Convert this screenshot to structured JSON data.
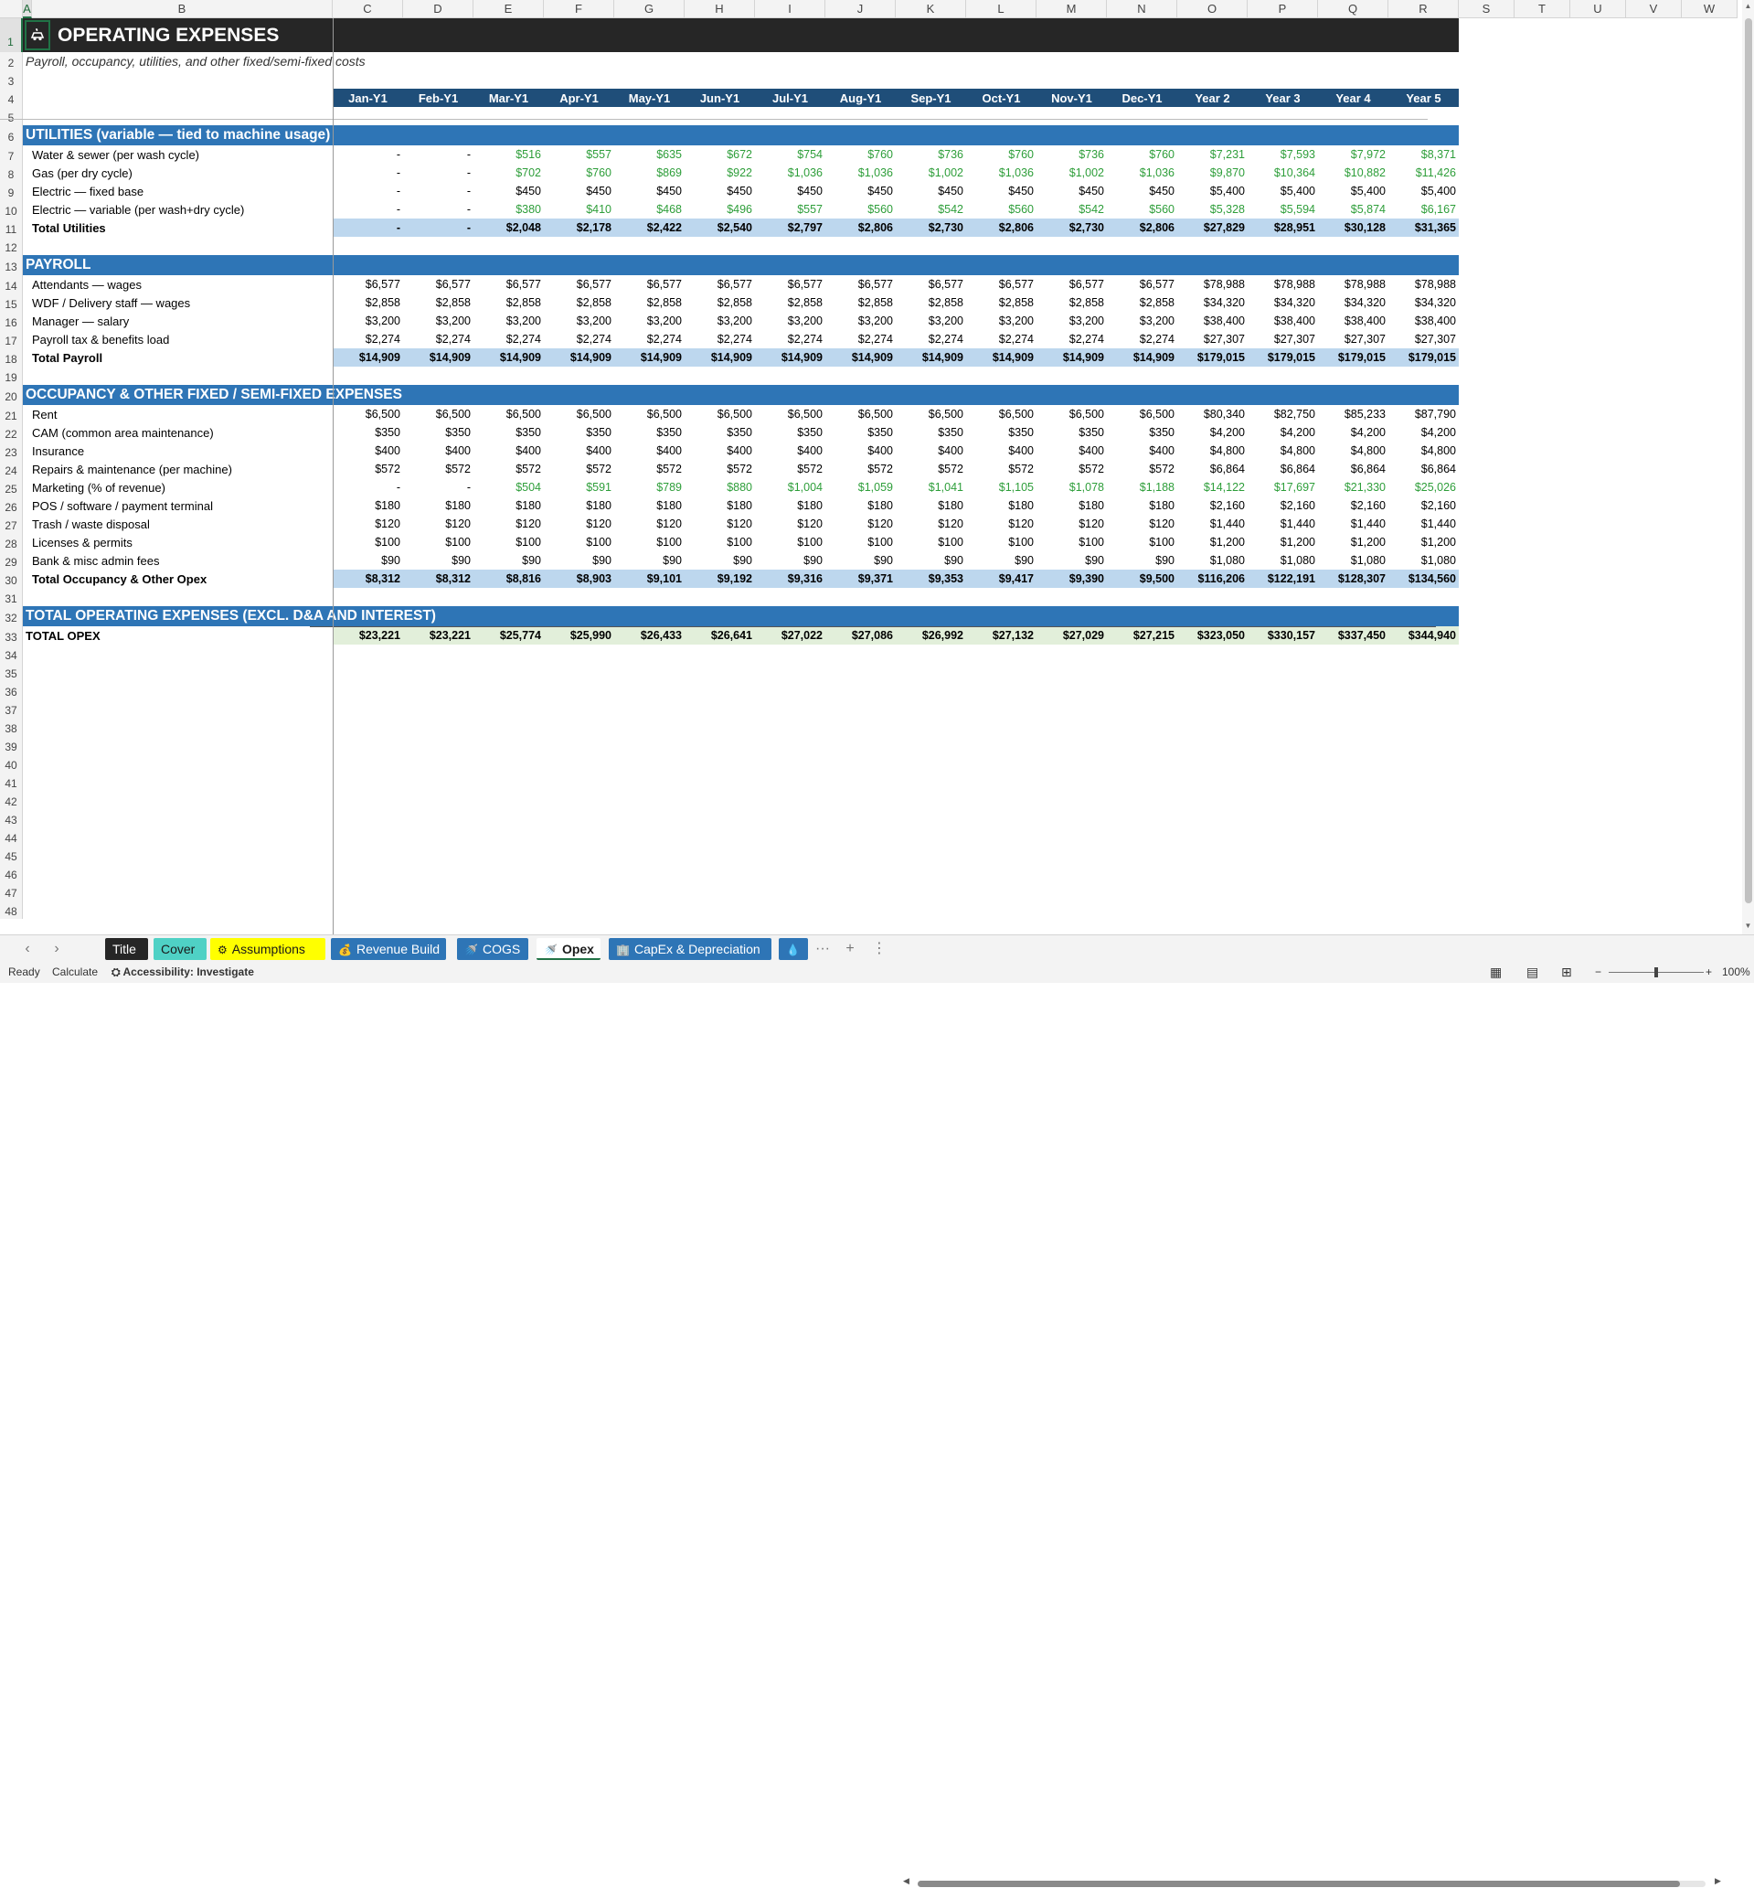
{
  "columns": [
    "A",
    "B",
    "C",
    "D",
    "E",
    "F",
    "G",
    "H",
    "I",
    "J",
    "K",
    "L",
    "M",
    "N",
    "O",
    "P",
    "Q",
    "R",
    "S",
    "T",
    "U",
    "V",
    "W"
  ],
  "selected_column": "A",
  "selected_row": "1",
  "title_icon": "car-wash-icon",
  "title": "OPERATING EXPENSES",
  "subtitle": "Payroll, occupancy, utilities, and other fixed/semi-fixed costs",
  "period_headers": [
    "Jan-Y1",
    "Feb-Y1",
    "Mar-Y1",
    "Apr-Y1",
    "May-Y1",
    "Jun-Y1",
    "Jul-Y1",
    "Aug-Y1",
    "Sep-Y1",
    "Oct-Y1",
    "Nov-Y1",
    "Dec-Y1",
    "Year 2",
    "Year 3",
    "Year 4",
    "Year 5"
  ],
  "sections": {
    "utilities": {
      "title": "UTILITIES (variable — tied to machine usage)",
      "rows": [
        {
          "label": "Water & sewer (per wash cycle)",
          "values": [
            "-",
            "-",
            "$516",
            "$557",
            "$635",
            "$672",
            "$754",
            "$760",
            "$736",
            "$760",
            "$736",
            "$760",
            "$7,231",
            "$7,593",
            "$7,972",
            "$8,371"
          ],
          "style": "green"
        },
        {
          "label": "Gas (per dry cycle)",
          "values": [
            "-",
            "-",
            "$702",
            "$760",
            "$869",
            "$922",
            "$1,036",
            "$1,036",
            "$1,002",
            "$1,036",
            "$1,002",
            "$1,036",
            "$9,870",
            "$10,364",
            "$10,882",
            "$11,426"
          ],
          "style": "green"
        },
        {
          "label": "Electric — fixed base",
          "values": [
            "-",
            "-",
            "$450",
            "$450",
            "$450",
            "$450",
            "$450",
            "$450",
            "$450",
            "$450",
            "$450",
            "$450",
            "$5,400",
            "$5,400",
            "$5,400",
            "$5,400"
          ],
          "style": "black"
        },
        {
          "label": "Electric — variable (per wash+dry cycle)",
          "values": [
            "-",
            "-",
            "$380",
            "$410",
            "$468",
            "$496",
            "$557",
            "$560",
            "$542",
            "$560",
            "$542",
            "$560",
            "$5,328",
            "$5,594",
            "$5,874",
            "$6,167"
          ],
          "style": "green"
        }
      ],
      "total": {
        "label": "Total Utilities",
        "values": [
          "-",
          "-",
          "$2,048",
          "$2,178",
          "$2,422",
          "$2,540",
          "$2,797",
          "$2,806",
          "$2,730",
          "$2,806",
          "$2,730",
          "$2,806",
          "$27,829",
          "$28,951",
          "$30,128",
          "$31,365"
        ]
      }
    },
    "payroll": {
      "title": "PAYROLL",
      "rows": [
        {
          "label": "Attendants — wages",
          "values": [
            "$6,577",
            "$6,577",
            "$6,577",
            "$6,577",
            "$6,577",
            "$6,577",
            "$6,577",
            "$6,577",
            "$6,577",
            "$6,577",
            "$6,577",
            "$6,577",
            "$78,988",
            "$78,988",
            "$78,988",
            "$78,988"
          ],
          "style": "black"
        },
        {
          "label": "WDF / Delivery staff — wages",
          "values": [
            "$2,858",
            "$2,858",
            "$2,858",
            "$2,858",
            "$2,858",
            "$2,858",
            "$2,858",
            "$2,858",
            "$2,858",
            "$2,858",
            "$2,858",
            "$2,858",
            "$34,320",
            "$34,320",
            "$34,320",
            "$34,320"
          ],
          "style": "black"
        },
        {
          "label": "Manager — salary",
          "values": [
            "$3,200",
            "$3,200",
            "$3,200",
            "$3,200",
            "$3,200",
            "$3,200",
            "$3,200",
            "$3,200",
            "$3,200",
            "$3,200",
            "$3,200",
            "$3,200",
            "$38,400",
            "$38,400",
            "$38,400",
            "$38,400"
          ],
          "style": "black"
        },
        {
          "label": "Payroll tax & benefits load",
          "values": [
            "$2,274",
            "$2,274",
            "$2,274",
            "$2,274",
            "$2,274",
            "$2,274",
            "$2,274",
            "$2,274",
            "$2,274",
            "$2,274",
            "$2,274",
            "$2,274",
            "$27,307",
            "$27,307",
            "$27,307",
            "$27,307"
          ],
          "style": "black"
        }
      ],
      "total": {
        "label": "Total Payroll",
        "values": [
          "$14,909",
          "$14,909",
          "$14,909",
          "$14,909",
          "$14,909",
          "$14,909",
          "$14,909",
          "$14,909",
          "$14,909",
          "$14,909",
          "$14,909",
          "$14,909",
          "$179,015",
          "$179,015",
          "$179,015",
          "$179,015"
        ]
      }
    },
    "occupancy": {
      "title": "OCCUPANCY & OTHER FIXED / SEMI-FIXED EXPENSES",
      "rows": [
        {
          "label": "Rent",
          "values": [
            "$6,500",
            "$6,500",
            "$6,500",
            "$6,500",
            "$6,500",
            "$6,500",
            "$6,500",
            "$6,500",
            "$6,500",
            "$6,500",
            "$6,500",
            "$6,500",
            "$80,340",
            "$82,750",
            "$85,233",
            "$87,790"
          ],
          "style": "black"
        },
        {
          "label": "CAM (common area maintenance)",
          "values": [
            "$350",
            "$350",
            "$350",
            "$350",
            "$350",
            "$350",
            "$350",
            "$350",
            "$350",
            "$350",
            "$350",
            "$350",
            "$4,200",
            "$4,200",
            "$4,200",
            "$4,200"
          ],
          "style": "black"
        },
        {
          "label": "Insurance",
          "values": [
            "$400",
            "$400",
            "$400",
            "$400",
            "$400",
            "$400",
            "$400",
            "$400",
            "$400",
            "$400",
            "$400",
            "$400",
            "$4,800",
            "$4,800",
            "$4,800",
            "$4,800"
          ],
          "style": "black"
        },
        {
          "label": "Repairs & maintenance (per machine)",
          "values": [
            "$572",
            "$572",
            "$572",
            "$572",
            "$572",
            "$572",
            "$572",
            "$572",
            "$572",
            "$572",
            "$572",
            "$572",
            "$6,864",
            "$6,864",
            "$6,864",
            "$6,864"
          ],
          "style": "black"
        },
        {
          "label": "Marketing (% of revenue)",
          "values": [
            "-",
            "-",
            "$504",
            "$591",
            "$789",
            "$880",
            "$1,004",
            "$1,059",
            "$1,041",
            "$1,105",
            "$1,078",
            "$1,188",
            "$14,122",
            "$17,697",
            "$21,330",
            "$25,026"
          ],
          "style": "green"
        },
        {
          "label": "POS / software / payment terminal",
          "values": [
            "$180",
            "$180",
            "$180",
            "$180",
            "$180",
            "$180",
            "$180",
            "$180",
            "$180",
            "$180",
            "$180",
            "$180",
            "$2,160",
            "$2,160",
            "$2,160",
            "$2,160"
          ],
          "style": "black"
        },
        {
          "label": "Trash / waste disposal",
          "values": [
            "$120",
            "$120",
            "$120",
            "$120",
            "$120",
            "$120",
            "$120",
            "$120",
            "$120",
            "$120",
            "$120",
            "$120",
            "$1,440",
            "$1,440",
            "$1,440",
            "$1,440"
          ],
          "style": "black"
        },
        {
          "label": "Licenses & permits",
          "values": [
            "$100",
            "$100",
            "$100",
            "$100",
            "$100",
            "$100",
            "$100",
            "$100",
            "$100",
            "$100",
            "$100",
            "$100",
            "$1,200",
            "$1,200",
            "$1,200",
            "$1,200"
          ],
          "style": "black"
        },
        {
          "label": "Bank & misc admin fees",
          "values": [
            "$90",
            "$90",
            "$90",
            "$90",
            "$90",
            "$90",
            "$90",
            "$90",
            "$90",
            "$90",
            "$90",
            "$90",
            "$1,080",
            "$1,080",
            "$1,080",
            "$1,080"
          ],
          "style": "black"
        }
      ],
      "total": {
        "label": "Total Occupancy & Other Opex",
        "values": [
          "$8,312",
          "$8,312",
          "$8,816",
          "$8,903",
          "$9,101",
          "$9,192",
          "$9,316",
          "$9,371",
          "$9,353",
          "$9,417",
          "$9,390",
          "$9,500",
          "$116,206",
          "$122,191",
          "$128,307",
          "$134,560"
        ]
      }
    },
    "grand": {
      "title": "TOTAL OPERATING EXPENSES (EXCL. D&A AND INTEREST)",
      "total": {
        "label": "TOTAL OPEX",
        "values": [
          "$23,221",
          "$23,221",
          "$25,774",
          "$25,990",
          "$26,433",
          "$26,641",
          "$27,022",
          "$27,086",
          "$26,992",
          "$27,132",
          "$27,029",
          "$27,215",
          "$323,050",
          "$330,157",
          "$337,450",
          "$344,940"
        ]
      }
    }
  },
  "tabs": [
    {
      "label": "Title",
      "icon": "",
      "bg": "#262626",
      "fg": "#ffffff",
      "active": false
    },
    {
      "label": "Cover",
      "icon": "",
      "bg": "#4fd1c5",
      "fg": "#1a1a1a",
      "active": false
    },
    {
      "label": "Assumptions",
      "icon": "gear-icon",
      "bg": "#ffff00",
      "fg": "#1a1a1a",
      "active": false
    },
    {
      "label": "Revenue Build",
      "icon": "money-bag-icon",
      "bg": "#2e75b6",
      "fg": "#ffffff",
      "active": false
    },
    {
      "label": "COGS",
      "icon": "car-wash-icon",
      "bg": "#2e75b6",
      "fg": "#ffffff",
      "active": false
    },
    {
      "label": "Opex",
      "icon": "car-wash-icon",
      "bg": "#ffffff",
      "fg": "#1a1a1a",
      "active": true
    },
    {
      "label": "CapEx & Depreciation",
      "icon": "building-icon",
      "bg": "#2e75b6",
      "fg": "#ffffff",
      "active": false
    },
    {
      "label": "",
      "icon": "droplet-icon",
      "bg": "#2e75b6",
      "fg": "#ffffff",
      "active": false
    }
  ],
  "tabbar_controls": {
    "more": "···",
    "add": "+",
    "options": "⋮"
  },
  "status": {
    "ready": "Ready",
    "calculate": "Calculate",
    "accessibility": "Accessibility: Investigate",
    "zoom": "100%"
  },
  "colors": {
    "title_bar": "#262626",
    "section_bar": "#2e75b6",
    "header_bar": "#1f4e79",
    "total_bar": "#bdd7ee",
    "grand_total_bar": "#e2efda",
    "green_text": "#2e9e3a"
  }
}
